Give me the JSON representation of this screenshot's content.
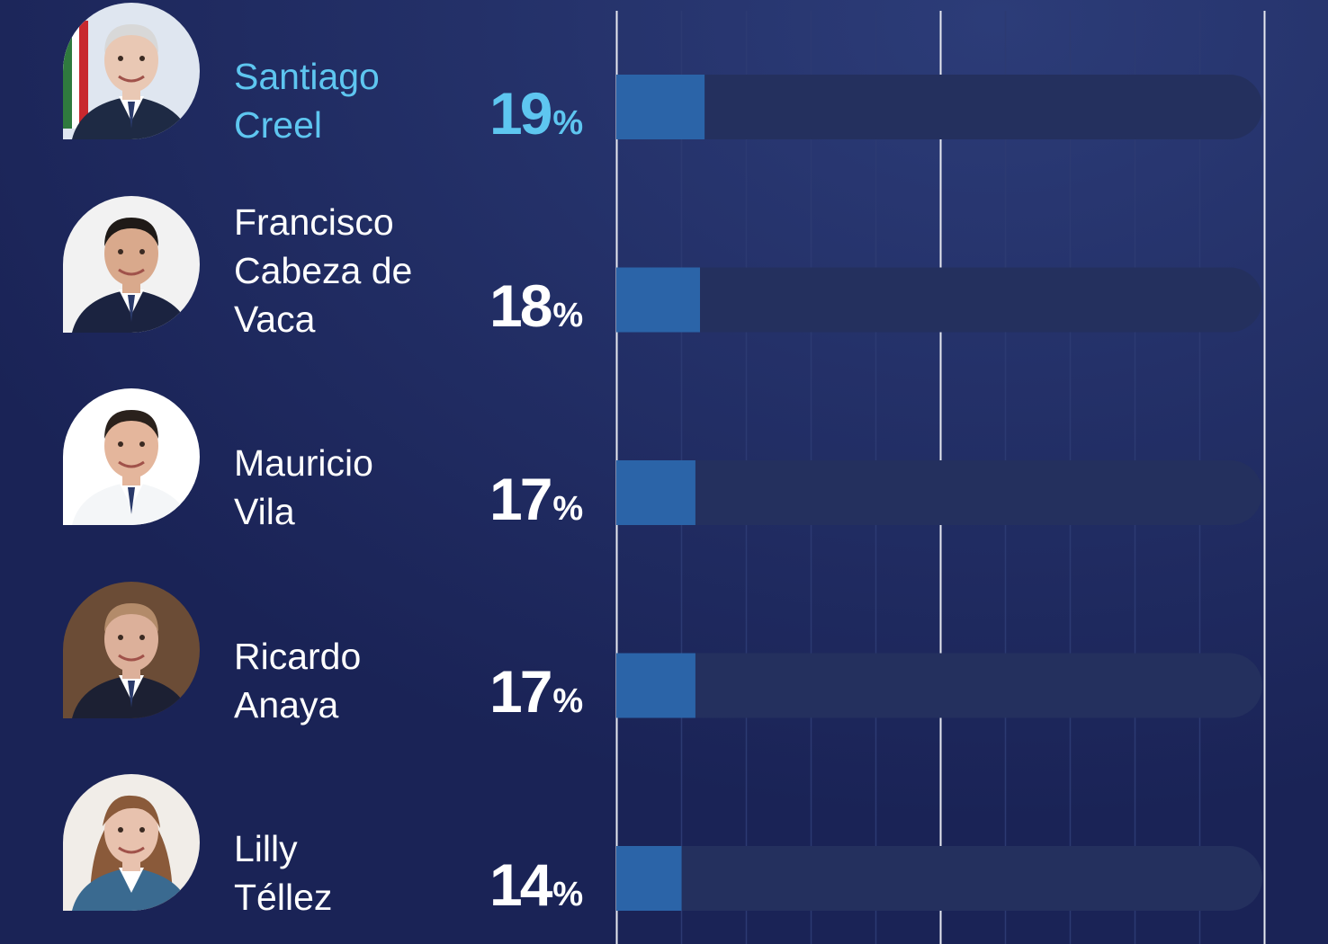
{
  "colors": {
    "background": "#1a2356",
    "track": "#24305e",
    "bar": "#2b64a8",
    "highlight_text": "#5ec6f0",
    "text": "#ffffff",
    "grid_minor": "#2c3a72",
    "grid_major": "#e6e8f0"
  },
  "chart_data": {
    "type": "bar",
    "orientation": "horizontal",
    "categories": [
      "Santiago Creel",
      "Francisco Cabeza de Vaca",
      "Mauricio Vila",
      "Ricardo Anaya",
      "Lilly Téllez"
    ],
    "values": [
      19,
      18,
      17,
      17,
      14
    ],
    "value_labels": [
      "19",
      "18",
      "17",
      "17",
      "14"
    ],
    "value_suffix": "%",
    "xlim": [
      0,
      100
    ],
    "grid": true,
    "highlight_index": 0
  },
  "rows": [
    {
      "name_lines": [
        "Santiago",
        "Creel"
      ],
      "avatar_icon": "candidate-photo-icon"
    },
    {
      "name_lines": [
        "Francisco",
        "Cabeza de",
        "Vaca"
      ],
      "avatar_icon": "candidate-photo-icon"
    },
    {
      "name_lines": [
        "Mauricio",
        "Vila"
      ],
      "avatar_icon": "candidate-photo-icon"
    },
    {
      "name_lines": [
        "Ricardo",
        "Anaya"
      ],
      "avatar_icon": "candidate-photo-icon"
    },
    {
      "name_lines": [
        "Lilly",
        "Téllez"
      ],
      "avatar_icon": "candidate-photo-icon"
    }
  ]
}
